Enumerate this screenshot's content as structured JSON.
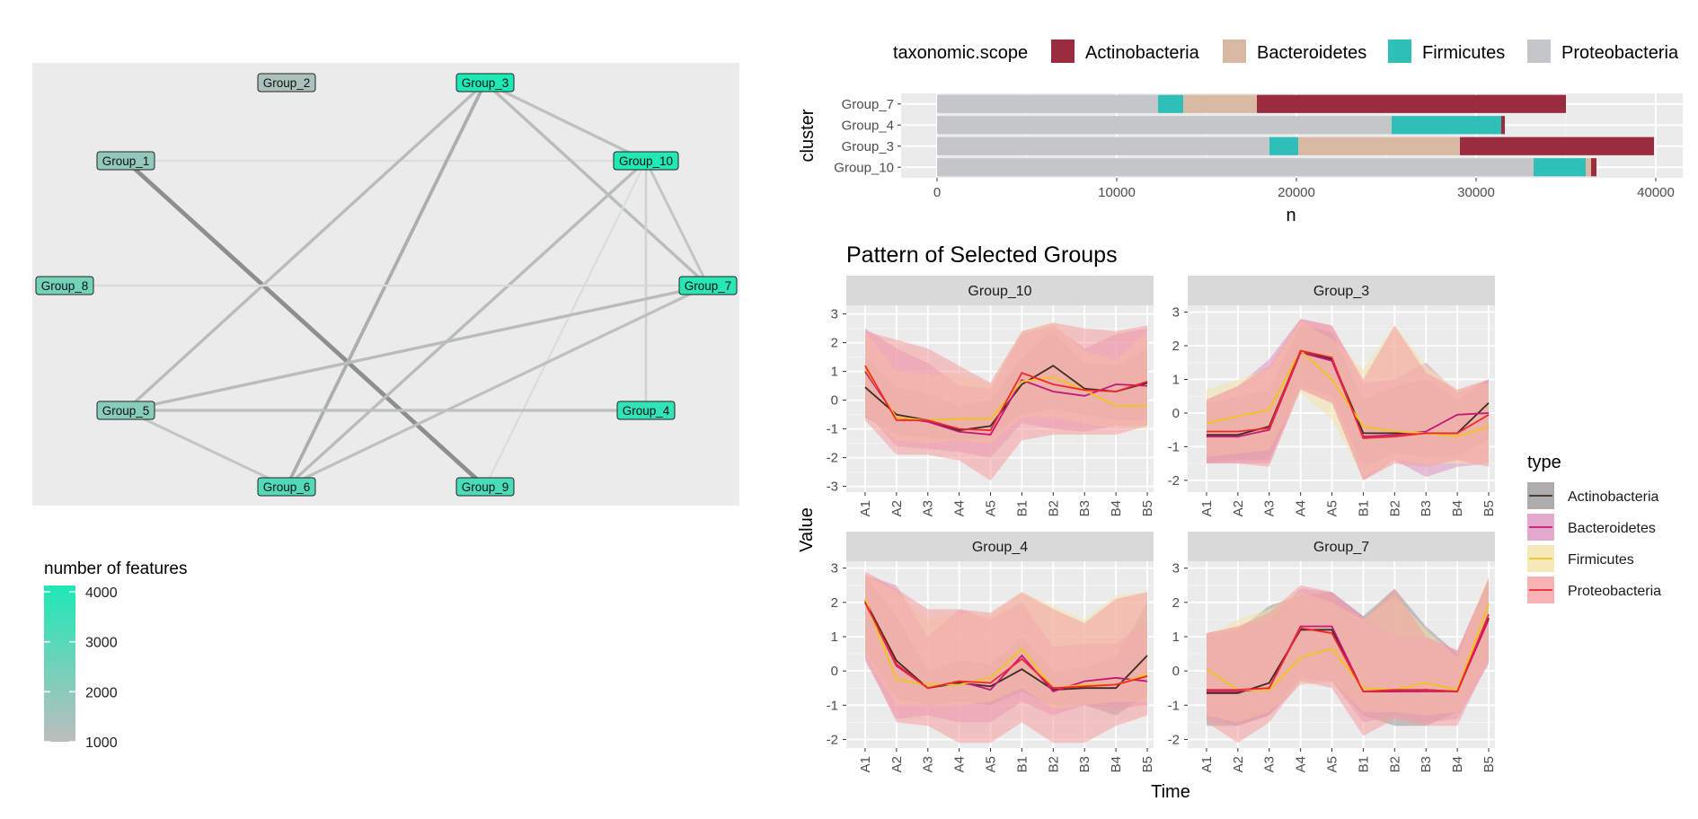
{
  "network": {
    "nodes": [
      "Group_1",
      "Group_2",
      "Group_3",
      "Group_4",
      "Group_5",
      "Group_6",
      "Group_7",
      "Group_8",
      "Group_9",
      "Group_10"
    ],
    "node_features": [
      1800,
      1300,
      4000,
      3600,
      2000,
      3000,
      3800,
      2400,
      3200,
      3900
    ],
    "edges": [
      {
        "from": "Group_1",
        "to": "Group_9",
        "strength": 0.95
      },
      {
        "from": "Group_1",
        "to": "Group_10",
        "strength": 0.08
      },
      {
        "from": "Group_3",
        "to": "Group_6",
        "strength": 0.6
      },
      {
        "from": "Group_3",
        "to": "Group_5",
        "strength": 0.45
      },
      {
        "from": "Group_3",
        "to": "Group_10",
        "strength": 0.4
      },
      {
        "from": "Group_3",
        "to": "Group_7",
        "strength": 0.45
      },
      {
        "from": "Group_10",
        "to": "Group_6",
        "strength": 0.45
      },
      {
        "from": "Group_10",
        "to": "Group_7",
        "strength": 0.35
      },
      {
        "from": "Group_10",
        "to": "Group_4",
        "strength": 0.2
      },
      {
        "from": "Group_10",
        "to": "Group_9",
        "strength": 0.08
      },
      {
        "from": "Group_8",
        "to": "Group_7",
        "strength": 0.1
      },
      {
        "from": "Group_5",
        "to": "Group_7",
        "strength": 0.45
      },
      {
        "from": "Group_5",
        "to": "Group_4",
        "strength": 0.4
      },
      {
        "from": "Group_5",
        "to": "Group_6",
        "strength": 0.35
      },
      {
        "from": "Group_6",
        "to": "Group_7",
        "strength": 0.4
      }
    ],
    "legend": {
      "title": "number of features",
      "ticks": [
        4000,
        3000,
        2000,
        1000
      ],
      "low_color": "#bdbdbd",
      "high_color": "#1de9b6"
    }
  },
  "chart_data": [
    {
      "type": "bar",
      "orientation": "horizontal",
      "stacked": true,
      "categories": [
        "Group_7",
        "Group_4",
        "Group_3",
        "Group_10"
      ],
      "series": [
        {
          "name": "Proteobacteria",
          "color": "#c5c6c9",
          "values": [
            12300,
            25300,
            18500,
            33200
          ]
        },
        {
          "name": "Firmicutes",
          "color": "#2fbfb9",
          "values": [
            1400,
            6100,
            1600,
            2900
          ]
        },
        {
          "name": "Bacteroidetes",
          "color": "#d9b9a3",
          "values": [
            4100,
            0,
            9000,
            300
          ]
        },
        {
          "name": "Actinobacteria",
          "color": "#9b2b3f",
          "values": [
            17200,
            200,
            10800,
            300
          ]
        }
      ],
      "legend_title": "taxonomic.scope",
      "legend_order": [
        "Actinobacteria",
        "Bacteroidetes",
        "Firmicutes",
        "Proteobacteria"
      ],
      "xlabel": "n",
      "ylabel": "cluster",
      "x_ticks": [
        0,
        10000,
        20000,
        30000,
        40000
      ],
      "xlim": [
        -2000,
        41500
      ]
    },
    {
      "type": "line",
      "title": "Pattern of Selected Groups",
      "xlabel": "Time",
      "ylabel": "Value",
      "x": [
        "A1",
        "A2",
        "A3",
        "A4",
        "A5",
        "B1",
        "B2",
        "B3",
        "B4",
        "B5"
      ],
      "legend_title": "type",
      "series_meta": [
        {
          "name": "Actinobacteria",
          "line": "#3d2b25",
          "fill": "#9a9797"
        },
        {
          "name": "Bacteroidetes",
          "line": "#c1197c",
          "fill": "#de93c2"
        },
        {
          "name": "Firmicutes",
          "line": "#f2c41b",
          "fill": "#f3e3a9"
        },
        {
          "name": "Proteobacteria",
          "line": "#f0262b",
          "fill": "#f59fa1"
        }
      ],
      "panels": [
        {
          "name": "Group_10",
          "ylim": [
            -3.2,
            3.3
          ],
          "y_ticks": [
            3,
            2,
            1,
            0,
            -1,
            -2,
            -3
          ],
          "series": [
            {
              "name": "Actinobacteria",
              "values": [
                0.45,
                -0.5,
                -0.7,
                -1.05,
                -0.9,
                0.55,
                1.2,
                0.4,
                0.3,
                0.6
              ],
              "lower": [
                -0.6,
                -1.2,
                -1.3,
                -1.4,
                -1.3,
                -0.5,
                -0.3,
                -0.5,
                -0.7,
                -0.7
              ],
              "upper": [
                1.5,
                0.5,
                0.2,
                -0.2,
                0.0,
                1.5,
                2.4,
                1.3,
                1.2,
                1.8
              ]
            },
            {
              "name": "Bacteroidetes",
              "values": [
                1.0,
                -0.6,
                -0.75,
                -1.1,
                -1.2,
                0.7,
                0.3,
                0.15,
                0.55,
                0.5
              ],
              "lower": [
                -0.4,
                -1.6,
                -1.7,
                -1.8,
                -2.0,
                -0.8,
                -1.0,
                -1.1,
                -0.9,
                -0.9
              ],
              "upper": [
                2.5,
                1.8,
                1.3,
                0.5,
                0.4,
                2.3,
                2.6,
                1.8,
                2.3,
                2.5
              ]
            },
            {
              "name": "Firmicutes",
              "values": [
                1.1,
                -0.6,
                -0.7,
                -0.65,
                -0.65,
                0.65,
                0.8,
                0.35,
                -0.2,
                -0.2
              ],
              "lower": [
                -0.5,
                -1.4,
                -1.5,
                -1.4,
                -1.5,
                -0.6,
                -0.6,
                -0.8,
                -1.0,
                -1.0
              ],
              "upper": [
                2.4,
                1.0,
                0.9,
                0.9,
                0.6,
                2.4,
                2.7,
                1.7,
                1.4,
                2.4
              ]
            },
            {
              "name": "Proteobacteria",
              "values": [
                1.2,
                -0.7,
                -0.7,
                -1.0,
                -1.05,
                0.95,
                0.55,
                0.35,
                0.3,
                0.65
              ],
              "lower": [
                -0.7,
                -1.9,
                -1.9,
                -2.1,
                -2.8,
                -1.4,
                -1.2,
                -1.2,
                -1.2,
                -0.9
              ],
              "upper": [
                2.4,
                2.1,
                1.8,
                1.2,
                0.6,
                2.4,
                2.7,
                2.5,
                2.4,
                2.6
              ]
            }
          ]
        },
        {
          "name": "Group_3",
          "ylim": [
            -2.35,
            3.2
          ],
          "y_ticks": [
            3,
            2,
            1,
            0,
            -1,
            -2
          ],
          "series": [
            {
              "name": "Actinobacteria",
              "values": [
                -0.65,
                -0.65,
                -0.4,
                1.85,
                1.6,
                -0.6,
                -0.6,
                -0.6,
                -0.6,
                0.3
              ],
              "lower": [
                -1.5,
                -1.4,
                -1.4,
                0.8,
                0.5,
                -1.6,
                -1.2,
                -1.3,
                -1.3,
                -0.8
              ],
              "upper": [
                0.3,
                0.5,
                0.7,
                2.6,
                2.4,
                0.4,
                0.8,
                1.0,
                0.4,
                1.0
              ]
            },
            {
              "name": "Bacteroidetes",
              "values": [
                -0.7,
                -0.7,
                -0.5,
                1.8,
                1.55,
                -0.7,
                -0.65,
                -0.55,
                -0.05,
                0.0
              ],
              "lower": [
                -1.5,
                -1.5,
                -1.5,
                0.7,
                0.3,
                -2.0,
                -1.4,
                -1.9,
                -1.6,
                -1.5
              ],
              "upper": [
                0.4,
                0.8,
                1.6,
                2.8,
                2.6,
                0.9,
                1.0,
                1.5,
                0.6,
                1.0
              ]
            },
            {
              "name": "Firmicutes",
              "values": [
                -0.3,
                -0.1,
                0.1,
                1.85,
                1.0,
                -0.4,
                -0.55,
                -0.6,
                -0.7,
                -0.4
              ],
              "lower": [
                -1.3,
                -1.2,
                -1.1,
                0.6,
                -0.2,
                -1.9,
                -1.4,
                -1.5,
                -1.5,
                -1.5
              ],
              "upper": [
                0.7,
                1.0,
                1.3,
                2.7,
                2.2,
                1.3,
                2.6,
                1.4,
                0.7,
                0.9
              ]
            },
            {
              "name": "Proteobacteria",
              "values": [
                -0.55,
                -0.55,
                -0.45,
                1.85,
                1.65,
                -0.75,
                -0.7,
                -0.6,
                -0.6,
                -0.05
              ],
              "lower": [
                -1.5,
                -1.5,
                -1.6,
                0.7,
                0.3,
                -2.0,
                -1.5,
                -1.6,
                -1.4,
                -1.6
              ],
              "upper": [
                0.4,
                0.8,
                1.4,
                2.8,
                2.6,
                1.0,
                2.6,
                1.2,
                0.7,
                1.0
              ]
            }
          ]
        },
        {
          "name": "Group_4",
          "ylim": [
            -2.25,
            3.2
          ],
          "y_ticks": [
            3,
            2,
            1,
            0,
            -1,
            -2
          ],
          "series": [
            {
              "name": "Actinobacteria",
              "values": [
                2.05,
                0.3,
                -0.5,
                -0.35,
                -0.45,
                0.05,
                -0.55,
                -0.5,
                -0.5,
                0.45
              ],
              "lower": [
                0.6,
                -0.8,
                -1.0,
                -0.9,
                -1.0,
                -0.6,
                -1.0,
                -1.0,
                -1.3,
                -0.7
              ],
              "upper": [
                2.8,
                1.6,
                0.0,
                0.3,
                0.2,
                1.0,
                0.0,
                0.1,
                0.4,
                2.0
              ]
            },
            {
              "name": "Bacteroidetes",
              "values": [
                2.0,
                0.15,
                -0.5,
                -0.3,
                -0.55,
                0.45,
                -0.6,
                -0.3,
                -0.2,
                -0.3
              ],
              "lower": [
                0.3,
                -1.4,
                -1.3,
                -1.5,
                -1.5,
                -0.9,
                -1.3,
                -1.0,
                -1.1,
                -1.0
              ],
              "upper": [
                2.8,
                2.5,
                1.0,
                1.8,
                1.5,
                2.0,
                0.7,
                0.8,
                0.8,
                1.5
              ]
            },
            {
              "name": "Firmicutes",
              "values": [
                2.1,
                -0.25,
                -0.4,
                -0.4,
                -0.2,
                0.65,
                -0.5,
                -0.4,
                -0.4,
                -0.1
              ],
              "lower": [
                0.5,
                -1.0,
                -1.0,
                -1.0,
                -0.9,
                -0.5,
                -1.1,
                -1.0,
                -0.9,
                -0.9
              ],
              "upper": [
                2.8,
                2.3,
                1.5,
                1.7,
                1.6,
                2.3,
                1.9,
                1.5,
                2.2,
                2.3
              ]
            },
            {
              "name": "Proteobacteria",
              "values": [
                2.0,
                0.2,
                -0.5,
                -0.3,
                -0.35,
                0.35,
                -0.5,
                -0.45,
                -0.4,
                -0.15
              ],
              "lower": [
                0.4,
                -1.5,
                -1.6,
                -2.1,
                -2.1,
                -1.5,
                -2.1,
                -2.1,
                -1.6,
                -1.3
              ],
              "upper": [
                2.9,
                2.4,
                1.8,
                1.8,
                1.7,
                2.3,
                1.8,
                1.4,
                2.1,
                2.3
              ]
            }
          ]
        },
        {
          "name": "Group_7",
          "ylim": [
            -2.25,
            3.2
          ],
          "y_ticks": [
            3,
            2,
            1,
            0,
            -1,
            -2
          ],
          "series": [
            {
              "name": "Actinobacteria",
              "values": [
                -0.65,
                -0.65,
                -0.35,
                1.2,
                1.2,
                -0.6,
                -0.6,
                -0.55,
                -0.6,
                1.55
              ],
              "lower": [
                -1.6,
                -1.6,
                -1.3,
                -0.2,
                -0.3,
                -1.3,
                -1.6,
                -1.6,
                -1.2,
                0.4
              ],
              "upper": [
                1.0,
                1.2,
                1.9,
                2.2,
                2.3,
                1.6,
                2.4,
                1.3,
                0.5,
                2.7
              ]
            },
            {
              "name": "Bacteroidetes",
              "values": [
                -0.6,
                -0.6,
                -0.5,
                1.3,
                1.3,
                -0.6,
                -0.6,
                -0.6,
                -0.6,
                1.5
              ],
              "lower": [
                -1.4,
                -1.6,
                -1.3,
                -0.4,
                -0.3,
                -1.5,
                -1.3,
                -1.5,
                -1.4,
                0.2
              ],
              "upper": [
                1.1,
                1.3,
                1.5,
                2.4,
                2.3,
                1.6,
                1.0,
                1.0,
                0.6,
                2.7
              ]
            },
            {
              "name": "Firmicutes",
              "values": [
                0.05,
                -0.55,
                -0.55,
                0.4,
                0.65,
                -0.5,
                -0.55,
                -0.35,
                -0.55,
                1.95
              ],
              "lower": [
                -1.3,
                -1.5,
                -1.2,
                -0.4,
                -0.3,
                -1.2,
                -1.2,
                -1.3,
                -1.2,
                0.4
              ],
              "upper": [
                1.0,
                1.5,
                1.8,
                2.3,
                2.0,
                1.5,
                2.2,
                1.2,
                0.4,
                2.8
              ]
            },
            {
              "name": "Proteobacteria",
              "values": [
                -0.55,
                -0.55,
                -0.5,
                1.25,
                1.1,
                -0.6,
                -0.55,
                -0.55,
                -0.6,
                1.65
              ],
              "lower": [
                -1.5,
                -2.1,
                -1.5,
                -0.3,
                -0.5,
                -1.9,
                -1.4,
                -1.6,
                -1.6,
                0.3
              ],
              "upper": [
                1.1,
                1.3,
                1.7,
                2.5,
                2.3,
                1.5,
                2.4,
                1.0,
                0.6,
                2.7
              ]
            }
          ]
        }
      ]
    }
  ]
}
